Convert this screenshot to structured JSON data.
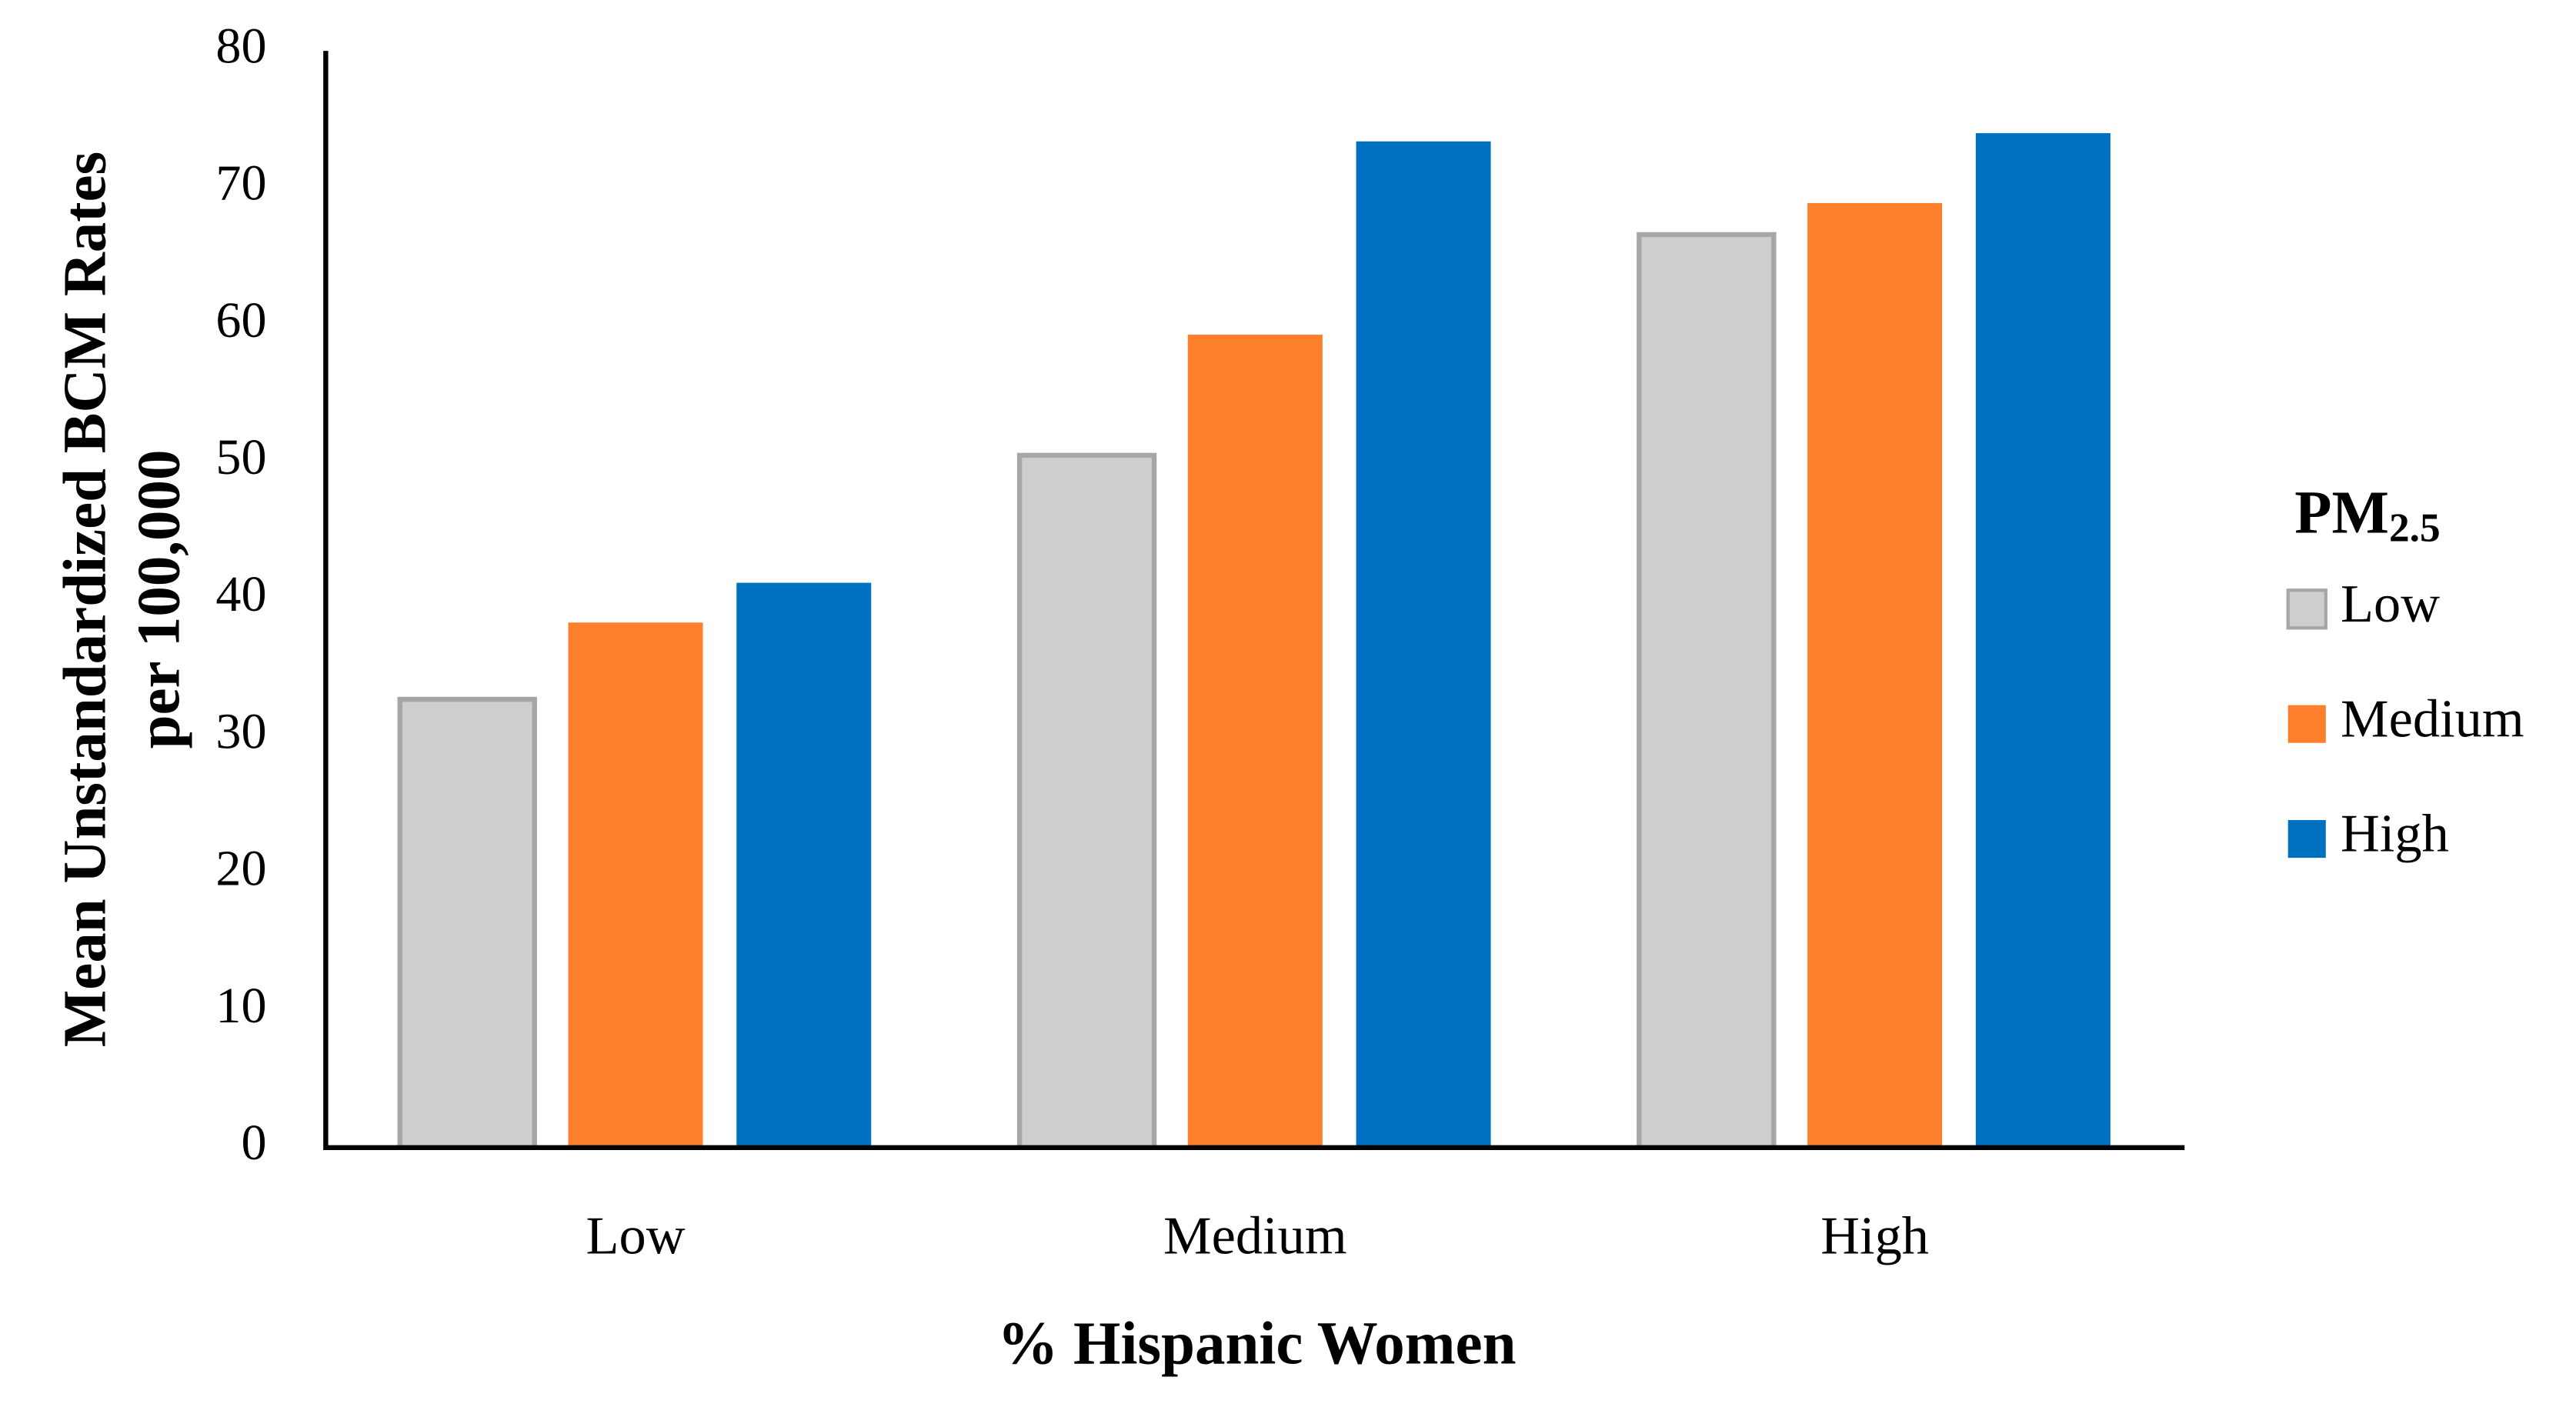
{
  "chart_data": {
    "type": "bar",
    "xlabel": "% Hispanic Women",
    "ylabel": [
      "Mean Unstandardized BCM Rates",
      "per 100,000"
    ],
    "legend_title": "PM",
    "legend_title_subscript": "2.5",
    "legend_position": "right",
    "categories": [
      "Low",
      "Medium",
      "High"
    ],
    "series": [
      {
        "name": "Low",
        "color": "#d0cecd",
        "values": [
          32.7,
          50.5,
          66.6
        ]
      },
      {
        "name": "Medium",
        "color": "#fe7f2b",
        "values": [
          38.3,
          59.3,
          68.9
        ]
      },
      {
        "name": "High",
        "color": "#0070c0",
        "values": [
          41.2,
          73.4,
          74.0
        ]
      }
    ],
    "ylim": [
      0,
      80
    ],
    "yticks": [
      0,
      10,
      20,
      30,
      40,
      50,
      60,
      70,
      80
    ],
    "grid": false
  }
}
